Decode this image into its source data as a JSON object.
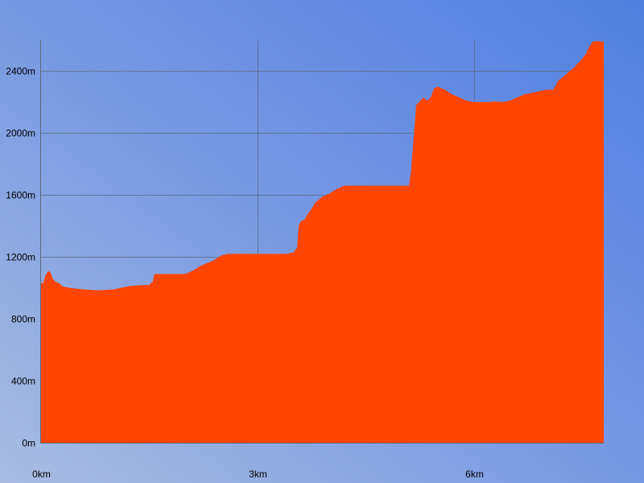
{
  "chart_data": {
    "type": "area",
    "title": "",
    "xlabel": "",
    "ylabel": "",
    "xlim": [
      0,
      7.8
    ],
    "ylim": [
      0,
      2600
    ],
    "x_ticks": [
      {
        "value": 0,
        "label": "0km"
      },
      {
        "value": 3,
        "label": "3km"
      },
      {
        "value": 6,
        "label": "6km"
      }
    ],
    "y_ticks": [
      {
        "value": 0,
        "label": "0m"
      },
      {
        "value": 400,
        "label": "400m"
      },
      {
        "value": 800,
        "label": "800m"
      },
      {
        "value": 1200,
        "label": "1200m"
      },
      {
        "value": 1600,
        "label": "1600m"
      },
      {
        "value": 2000,
        "label": "2000m"
      },
      {
        "value": 2400,
        "label": "2400m"
      }
    ],
    "grid": true,
    "colors": {
      "fill": "#ff4500",
      "background_start": "#a8bde0",
      "background_mid": "#7797e2",
      "background_end": "#5080e0",
      "grid": "#5a6a80"
    },
    "series": [
      {
        "x": [
          0,
          0.03,
          0.06,
          0.1,
          0.13,
          0.16,
          0.2,
          0.25,
          0.3,
          0.35,
          0.4,
          0.5,
          0.6,
          0.8,
          1.0,
          1.1,
          1.2,
          1.3,
          1.4,
          1.5,
          1.53,
          1.55,
          1.57,
          1.6,
          1.8,
          2.0,
          2.1,
          2.2,
          2.3,
          2.4,
          2.5,
          2.6,
          2.7,
          2.8,
          2.9,
          3.0,
          3.2,
          3.4,
          3.5,
          3.55,
          3.57,
          3.6,
          3.65,
          3.7,
          3.75,
          3.8,
          3.9,
          4.0,
          4.1,
          4.2,
          4.3,
          4.5,
          4.7,
          4.9,
          5.0,
          5.1,
          5.13,
          5.17,
          5.2,
          5.3,
          5.35,
          5.4,
          5.45,
          5.5,
          5.6,
          5.7,
          5.8,
          5.9,
          6.0,
          6.1,
          6.2,
          6.3,
          6.4,
          6.5,
          6.55,
          6.6,
          6.7,
          6.8,
          6.9,
          7.0,
          7.1,
          7.17,
          7.2,
          7.3,
          7.4,
          7.5,
          7.55,
          7.6,
          7.65,
          7.7,
          7.8
        ],
        "y": [
          1030,
          1030,
          1080,
          1110,
          1100,
          1060,
          1040,
          1030,
          1010,
          1005,
          1000,
          995,
          990,
          985,
          990,
          1000,
          1010,
          1015,
          1018,
          1020,
          1035,
          1040,
          1090,
          1090,
          1090,
          1090,
          1110,
          1140,
          1160,
          1180,
          1210,
          1220,
          1220,
          1220,
          1220,
          1220,
          1220,
          1220,
          1230,
          1260,
          1400,
          1430,
          1440,
          1480,
          1510,
          1550,
          1590,
          1610,
          1640,
          1660,
          1660,
          1660,
          1660,
          1660,
          1660,
          1660,
          1760,
          2000,
          2180,
          2230,
          2210,
          2230,
          2290,
          2300,
          2280,
          2250,
          2230,
          2210,
          2200,
          2200,
          2200,
          2205,
          2200,
          2210,
          2220,
          2230,
          2250,
          2260,
          2270,
          2280,
          2280,
          2340,
          2350,
          2390,
          2430,
          2480,
          2510,
          2560,
          2590,
          2595,
          2590
        ]
      }
    ]
  }
}
